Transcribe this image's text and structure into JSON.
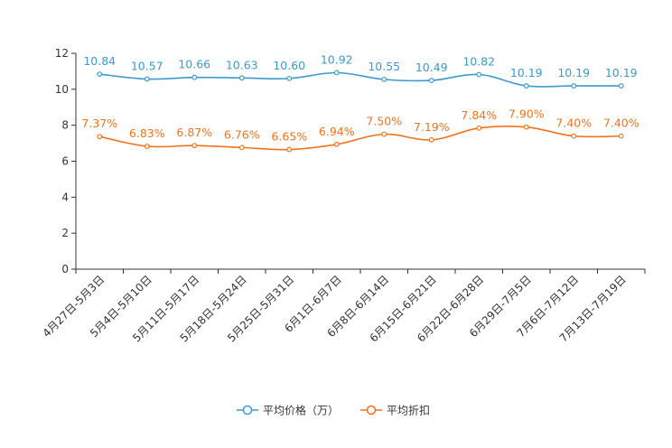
{
  "chart_data": {
    "type": "line",
    "title": "",
    "xlabel": "",
    "ylabel": "",
    "ylim": [
      0,
      12
    ],
    "yticks": [
      0,
      2,
      4,
      6,
      8,
      10,
      12
    ],
    "grid": false,
    "legend_position": "bottom-center",
    "categories": [
      "4月27日-5月3日",
      "5月4日-5月10日",
      "5月11日-5月17日",
      "5月18日-5月24日",
      "5月25日-5月31日",
      "6月1日-6月7日",
      "6月8日-6月14日",
      "6月15日-6月21日",
      "6月22日-6月28日",
      "6月29日-7月5日",
      "7月6日-7月12日",
      "7月13日-7月19日"
    ],
    "series": [
      {
        "name": "平均价格（万）",
        "color": "#3a9ad1",
        "values": [
          10.84,
          10.57,
          10.66,
          10.63,
          10.6,
          10.92,
          10.55,
          10.49,
          10.82,
          10.19,
          10.19,
          10.19
        ],
        "labels": [
          "10.84",
          "10.57",
          "10.66",
          "10.63",
          "10.60",
          "10.92",
          "10.55",
          "10.49",
          "10.82",
          "10.19",
          "10.19",
          "10.19"
        ]
      },
      {
        "name": "平均折扣",
        "color": "#f0731c",
        "values": [
          7.37,
          6.83,
          6.87,
          6.76,
          6.65,
          6.94,
          7.5,
          7.19,
          7.84,
          7.9,
          7.4,
          7.4
        ],
        "labels": [
          "7.37%",
          "6.83%",
          "6.87%",
          "6.76%",
          "6.65%",
          "6.94%",
          "7.50%",
          "7.19%",
          "7.84%",
          "7.90%",
          "7.40%",
          "7.40%"
        ]
      }
    ]
  }
}
